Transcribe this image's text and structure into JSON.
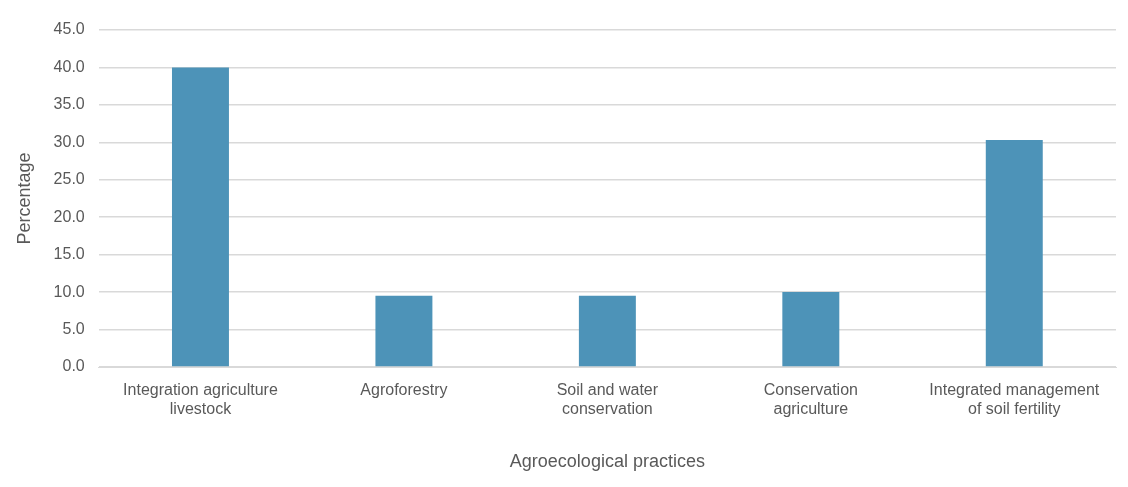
{
  "chart_data": {
    "type": "bar",
    "xlabel": "Agroecological practices",
    "ylabel": "Percentage",
    "categories": [
      "Integration agriculture livestock",
      "Agroforestry",
      "Soil and water conservation",
      "Conservation agriculture",
      "Integrated management of soil fertility"
    ],
    "values": [
      40.0,
      9.5,
      9.5,
      10.0,
      30.3
    ],
    "color": "#4d93b8",
    "ylim": [
      0,
      45
    ],
    "yticks": [
      {
        "value": 0,
        "label": "0.0"
      },
      {
        "value": 5,
        "label": "5.0"
      },
      {
        "value": 10,
        "label": "10.0"
      },
      {
        "value": 15,
        "label": "15.0"
      },
      {
        "value": 20,
        "label": "20.0"
      },
      {
        "value": 25,
        "label": "25.0"
      },
      {
        "value": 30,
        "label": "30.0"
      },
      {
        "value": 35,
        "label": "35.0"
      },
      {
        "value": 40,
        "label": "40.0"
      },
      {
        "value": 45,
        "label": "45.0"
      }
    ],
    "grid": "y"
  }
}
